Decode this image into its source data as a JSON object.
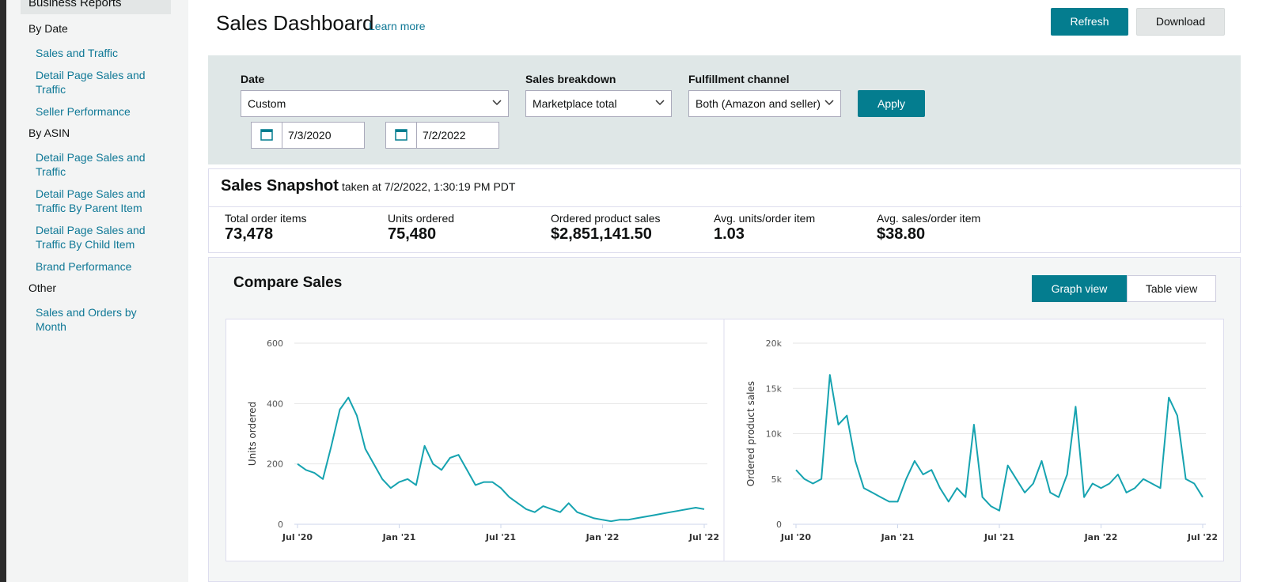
{
  "sidebar": {
    "top": "Business Reports",
    "groups": [
      {
        "heading": "By Date",
        "links": [
          "Sales and Traffic",
          "Detail Page Sales and Traffic",
          "Seller Performance"
        ]
      },
      {
        "heading": "By ASIN",
        "links": [
          "Detail Page Sales and Traffic",
          "Detail Page Sales and Traffic By Parent Item",
          "Detail Page Sales and Traffic By Child Item",
          "Brand Performance"
        ]
      },
      {
        "heading": "Other",
        "links": [
          "Sales and Orders by Month"
        ]
      }
    ]
  },
  "header": {
    "title": "Sales Dashboard",
    "learn_more": "Learn more",
    "refresh": "Refresh",
    "download": "Download"
  },
  "filters": {
    "date_label": "Date",
    "date_value": "Custom",
    "start": "7/3/2020",
    "end": "7/2/2022",
    "breakdown_label": "Sales breakdown",
    "breakdown_value": "Marketplace total",
    "fulfillment_label": "Fulfillment channel",
    "fulfillment_value": "Both (Amazon and seller)",
    "apply": "Apply"
  },
  "snapshot": {
    "title": "Sales Snapshot",
    "taken": "taken at 7/2/2022, 1:30:19 PM PDT",
    "metrics": [
      {
        "label": "Total order items",
        "value": "73,478"
      },
      {
        "label": "Units ordered",
        "value": "75,480"
      },
      {
        "label": "Ordered product sales",
        "value": "$2,851,141.50"
      },
      {
        "label": "Avg. units/order item",
        "value": "1.03"
      },
      {
        "label": "Avg. sales/order item",
        "value": "$38.80"
      }
    ]
  },
  "compare": {
    "title": "Compare Sales",
    "graph_view": "Graph view",
    "table_view": "Table view"
  },
  "chart_data": [
    {
      "type": "line",
      "y_label": "Units ordered",
      "color": "#16a3b0",
      "grid": true,
      "x": [
        0,
        0.5,
        1,
        1.5,
        2,
        2.5,
        3,
        3.5,
        4,
        4.5,
        5,
        5.5,
        6,
        6.5,
        7,
        7.5,
        8,
        8.5,
        9,
        9.5,
        10,
        10.5,
        11,
        11.5,
        12,
        12.5,
        13,
        13.5,
        14,
        14.5,
        15,
        15.5,
        16,
        16.5,
        17,
        17.5,
        18,
        18.5,
        19,
        19.5,
        20,
        20.5,
        21,
        21.5,
        22,
        22.5,
        23,
        23.5,
        24
      ],
      "values": [
        200,
        180,
        170,
        150,
        260,
        380,
        420,
        360,
        250,
        200,
        150,
        120,
        140,
        150,
        130,
        260,
        200,
        180,
        220,
        230,
        180,
        130,
        140,
        140,
        120,
        90,
        70,
        50,
        40,
        60,
        50,
        40,
        70,
        40,
        30,
        20,
        15,
        10,
        15,
        15,
        20,
        25,
        30,
        35,
        40,
        45,
        50,
        55,
        50
      ],
      "xlim": [
        0,
        24
      ],
      "xticks": [
        {
          "value": 0,
          "label": "Jul '20"
        },
        {
          "value": 6,
          "label": "Jan '21"
        },
        {
          "value": 12,
          "label": "Jul '21"
        },
        {
          "value": 18,
          "label": "Jan '22"
        },
        {
          "value": 24,
          "label": "Jul '22"
        }
      ],
      "ylim": [
        0,
        600
      ],
      "yticks": [
        0,
        200,
        400,
        600
      ]
    },
    {
      "type": "line",
      "y_label": "Ordered product sales",
      "color": "#16a3b0",
      "grid": true,
      "x": [
        0,
        0.5,
        1,
        1.5,
        2,
        2.5,
        3,
        3.5,
        4,
        4.5,
        5,
        5.5,
        6,
        6.5,
        7,
        7.5,
        8,
        8.5,
        9,
        9.5,
        10,
        10.5,
        11,
        11.5,
        12,
        12.5,
        13,
        13.5,
        14,
        14.5,
        15,
        15.5,
        16,
        16.5,
        17,
        17.5,
        18,
        18.5,
        19,
        19.5,
        20,
        20.5,
        21,
        21.5,
        22,
        22.5,
        23,
        23.5,
        24
      ],
      "values": [
        6000,
        5000,
        4500,
        5000,
        16500,
        11000,
        12000,
        7000,
        4000,
        3500,
        3000,
        2500,
        2500,
        5000,
        7000,
        5500,
        6000,
        4000,
        2500,
        4000,
        3000,
        11000,
        3000,
        2000,
        1500,
        6500,
        5000,
        3500,
        4500,
        7000,
        3500,
        3000,
        5500,
        13000,
        3000,
        4500,
        4000,
        4500,
        5500,
        3500,
        4000,
        5000,
        4500,
        4000,
        14000,
        12000,
        5000,
        4500,
        3000
      ],
      "xlim": [
        0,
        24
      ],
      "xticks": [
        {
          "value": 0,
          "label": "Jul '20"
        },
        {
          "value": 6,
          "label": "Jan '21"
        },
        {
          "value": 12,
          "label": "Jul '21"
        },
        {
          "value": 18,
          "label": "Jan '22"
        },
        {
          "value": 24,
          "label": "Jul '22"
        }
      ],
      "ylim": [
        0,
        20000
      ],
      "yticks": [
        0,
        {
          "value": 5000,
          "label": "5k"
        },
        {
          "value": 10000,
          "label": "10k"
        },
        {
          "value": 15000,
          "label": "15k"
        },
        {
          "value": 20000,
          "label": "20k"
        }
      ]
    }
  ]
}
